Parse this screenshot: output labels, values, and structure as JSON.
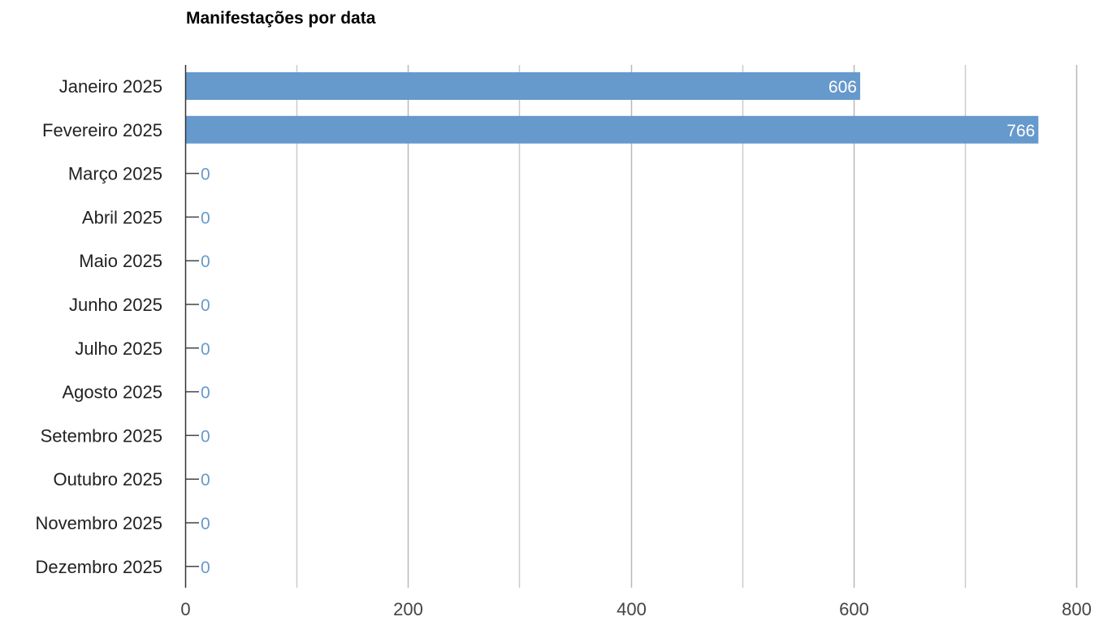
{
  "chart_data": {
    "type": "bar",
    "orientation": "horizontal",
    "title": "Manifestações por data",
    "categories": [
      "Janeiro 2025",
      "Fevereiro 2025",
      "Março 2025",
      "Abril 2025",
      "Maio 2025",
      "Junho 2025",
      "Julho 2025",
      "Agosto 2025",
      "Setembro 2025",
      "Outubro 2025",
      "Novembro 2025",
      "Dezembro 2025"
    ],
    "values": [
      606,
      766,
      0,
      0,
      0,
      0,
      0,
      0,
      0,
      0,
      0,
      0
    ],
    "xlim": [
      0,
      800
    ],
    "xticks": [
      0,
      200,
      400,
      600,
      800
    ],
    "minor_gridlines": [
      100,
      300,
      500,
      700
    ],
    "grid": true,
    "data_labels": true,
    "bar_color": "#6699cc",
    "label_inside_color": "#ffffff",
    "label_outside_color": "#6699cc"
  }
}
